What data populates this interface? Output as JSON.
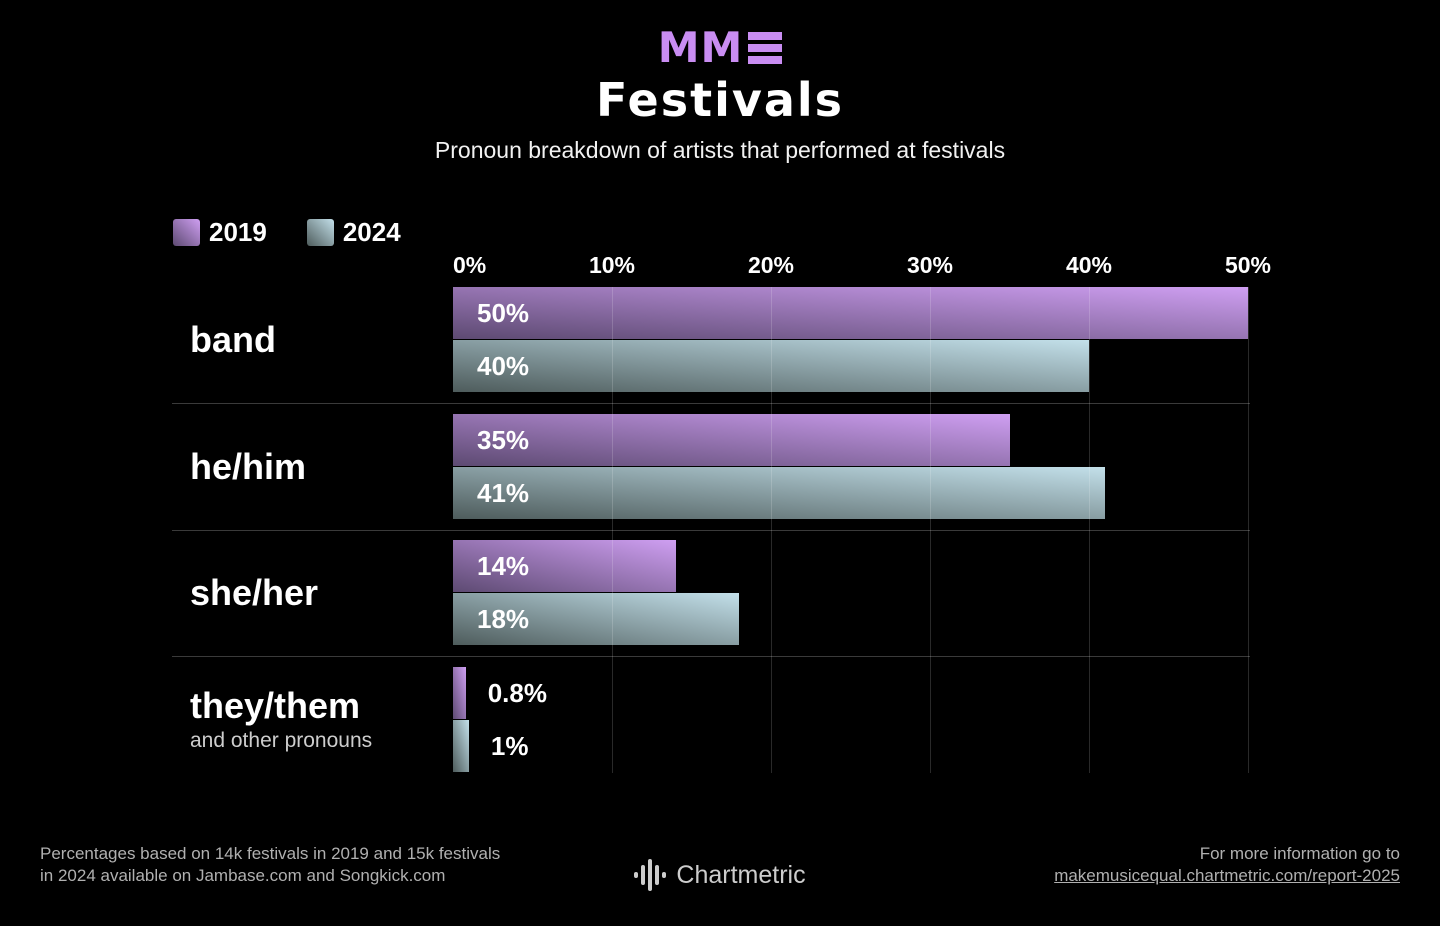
{
  "header": {
    "logo_text": "MM",
    "logo_color": "#c98df2",
    "title": "Festivals",
    "subtitle": "Pronoun breakdown of artists that performed at festivals"
  },
  "legend": {
    "items": [
      {
        "label": "2019"
      },
      {
        "label": "2024"
      }
    ]
  },
  "chart_data": {
    "type": "bar",
    "orientation": "horizontal",
    "title": "Festivals",
    "subtitle": "Pronoun breakdown of artists that performed at festivals",
    "categories": [
      "band",
      "he/him",
      "she/her",
      "they/them"
    ],
    "category_note": "and other pronouns",
    "series": [
      {
        "name": "2019",
        "values": [
          50,
          35,
          14,
          0.8
        ],
        "labels": [
          "50%",
          "35%",
          "14%",
          "0.8%"
        ],
        "color_start": "#5d4a72",
        "color_end": "#cf9ff2"
      },
      {
        "name": "2024",
        "values": [
          40,
          41,
          18,
          1
        ],
        "labels": [
          "40%",
          "41%",
          "18%",
          "1%"
        ],
        "color_start": "#4e5c5c",
        "color_end": "#c3e0ea"
      }
    ],
    "x_ticks": [
      "0%",
      "10%",
      "20%",
      "30%",
      "40%",
      "50%"
    ],
    "xlim": [
      0,
      50
    ],
    "grid": "vertical",
    "legend_position": "top-left",
    "background": "#000000"
  },
  "footer": {
    "note_line1": "Percentages based on 14k festivals in 2019 and 15k festivals",
    "note_line2": "in 2024 available on Jambase.com and Songkick.com",
    "brand": "Chartmetric",
    "info_line1": "For more information go to",
    "info_link": "makemusicequal.chartmetric.com/report-2025"
  }
}
